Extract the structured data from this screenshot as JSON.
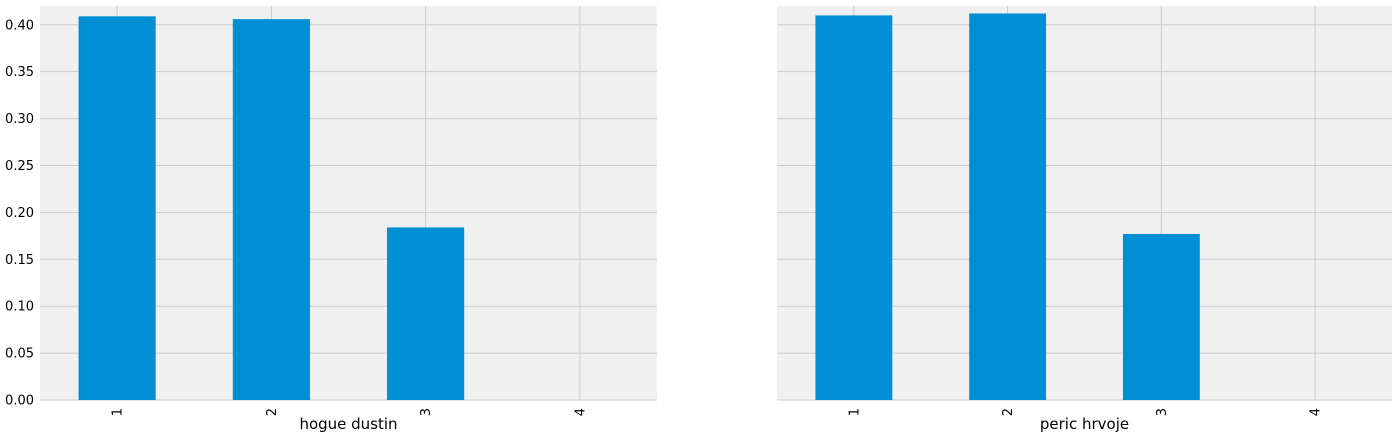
{
  "chart_data": [
    {
      "type": "bar",
      "title": "",
      "xlabel": "hogue dustin",
      "ylabel": "",
      "categories": [
        "1",
        "2",
        "3",
        "4"
      ],
      "values": [
        0.409,
        0.406,
        0.184,
        0.0
      ],
      "ylim": [
        0,
        0.42
      ],
      "yticks": [
        "0.00",
        "0.05",
        "0.10",
        "0.15",
        "0.20",
        "0.25",
        "0.30",
        "0.35",
        "0.40"
      ],
      "show_ytick_labels": true,
      "grid": true,
      "x_tick_rotation": "vertical"
    },
    {
      "type": "bar",
      "title": "",
      "xlabel": "peric hrvoje",
      "ylabel": "",
      "categories": [
        "1",
        "2",
        "3",
        "4"
      ],
      "values": [
        0.41,
        0.412,
        0.177,
        0.0
      ],
      "ylim": [
        0,
        0.42
      ],
      "yticks": [
        "0.00",
        "0.05",
        "0.10",
        "0.15",
        "0.20",
        "0.25",
        "0.30",
        "0.35",
        "0.40"
      ],
      "show_ytick_labels": false,
      "grid": true,
      "x_tick_rotation": "vertical"
    }
  ],
  "style": {
    "bar_color": "#008fd5",
    "plot_background": "#f0f0f0",
    "grid_color": "#cbcbcb",
    "figure_background": "#ffffff"
  }
}
